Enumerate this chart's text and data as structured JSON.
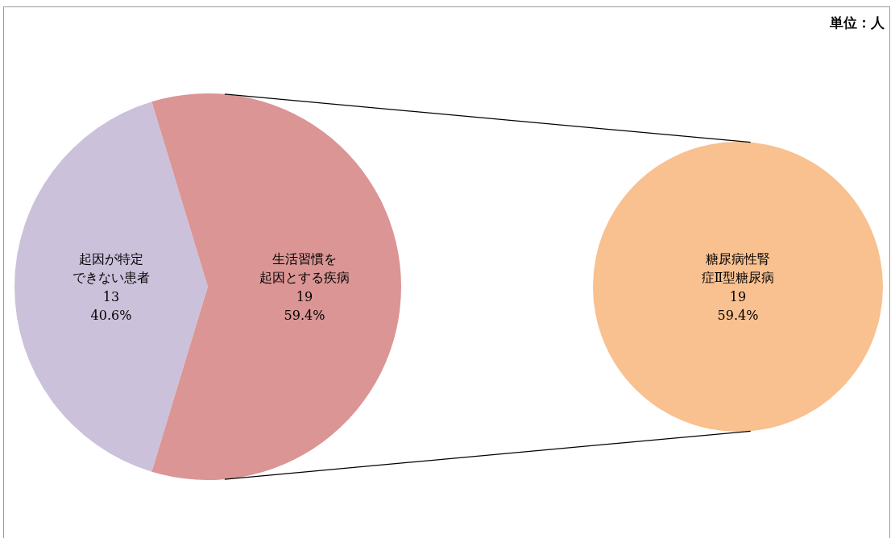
{
  "chart_data": [
    {
      "type": "pie",
      "categories": [
        "起因が特定できない患者",
        "生活習慣を起因とする疾病"
      ],
      "values": [
        13,
        19
      ],
      "colors": [
        "#cbc1da",
        "#da9594"
      ],
      "value_labels": [
        "13\n40.6%",
        "19\n59.4%"
      ],
      "annotations": [
        "単位：人"
      ]
    },
    {
      "type": "pie",
      "categories": [
        "糖尿病性腎症Ⅱ型糖尿病"
      ],
      "values": [
        19
      ],
      "colors": [
        "#f9c090"
      ],
      "value_labels": [
        "19\n59.4%"
      ]
    }
  ]
}
